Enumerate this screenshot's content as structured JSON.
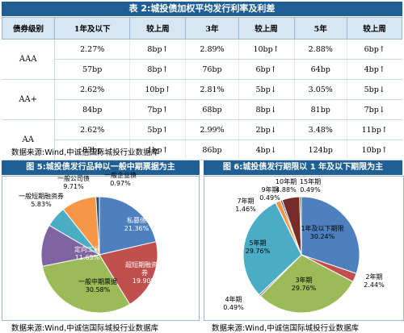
{
  "table": {
    "title": "表 2:城投债加权平均发行利率及利差",
    "headers": [
      "债券级别",
      "1年及以下",
      "较上周",
      "3年",
      "较上周",
      "5年",
      "较上周"
    ],
    "rows": [
      {
        "grade": "AAA",
        "rate": [
          "2.27%",
          "8bp↑",
          "2.89%",
          "10bp↑",
          "2.88%",
          "6bp↑"
        ],
        "spread": [
          "57bp",
          "8bp↑",
          "76bp",
          "6bp↑",
          "64bp",
          "4bp↑"
        ]
      },
      {
        "grade": "AA+",
        "rate": [
          "2.62%",
          "10bp↑",
          "2.81%",
          "5bp↓",
          "3.05%",
          "5bp↓"
        ],
        "spread": [
          "84bp",
          "7bp↑",
          "68bp",
          "8bp↓",
          "81bp",
          "7bp↓"
        ]
      },
      {
        "grade": "AA",
        "rate": [
          "2.62%",
          "5bp↑",
          "2.99%",
          "2bp↓",
          "3.48%",
          "11bp↑"
        ],
        "spread": [
          "83bp",
          "1bp↑",
          "86bp",
          "4bp↓",
          "124bp",
          "10bp↑"
        ]
      }
    ],
    "source": "数据来源:Wind,中诚信国际城投行业数据库"
  },
  "fig5": {
    "title": "图 5:城投债发行品种以一般中期票据为主",
    "source": "数据来源:Wind,中诚信国际城投行业数据库"
  },
  "fig6": {
    "title": "图 6:城投债发行期限以 1 年及以下期限为主",
    "source": "数据来源:Wind,中诚信国际城投行业数据库"
  },
  "chart_data": [
    {
      "type": "pie",
      "slices": [
        {
          "label": "私募债",
          "value": 21.36,
          "text": "21.36%",
          "color": "#4e7fbf"
        },
        {
          "label": "超短期融资债券",
          "value": 19.9,
          "text": "19.90%",
          "color": "#c0504d"
        },
        {
          "label": "一般中期票据",
          "value": 30.58,
          "text": "30.58%",
          "color": "#9bbb59"
        },
        {
          "label": "定向工具",
          "value": 11.65,
          "text": "11.65%",
          "color": "#8064a2"
        },
        {
          "label": "一般短期融资券",
          "value": 5.83,
          "text": "5.83%",
          "color": "#4bacc6"
        },
        {
          "label": "一般公司债",
          "value": 9.71,
          "text": "9.71%",
          "color": "#f79646"
        },
        {
          "label": "一般企业债",
          "value": 0.97,
          "text": "0.97%",
          "color": "#2c4d75"
        }
      ]
    },
    {
      "type": "pie",
      "slices": [
        {
          "label": "1年及以下期限",
          "value": 30.24,
          "text": "30.24%",
          "color": "#4e7fbf"
        },
        {
          "label": "2年期",
          "value": 2.44,
          "text": "2.44%",
          "color": "#c0504d"
        },
        {
          "label": "3年期",
          "value": 29.76,
          "text": "29.76%",
          "color": "#9bbb59"
        },
        {
          "label": "4年期",
          "value": 0.49,
          "text": "0.49%",
          "color": "#8064a2"
        },
        {
          "label": "5年期",
          "value": 29.76,
          "text": "29.76%",
          "color": "#4bacc6"
        },
        {
          "label": "7年期",
          "value": 1.46,
          "text": "1.46%",
          "color": "#f79646"
        },
        {
          "label": "9年期",
          "value": 0.49,
          "text": "0.49%",
          "color": "#2c4d75"
        },
        {
          "label": "10年期",
          "value": 4.88,
          "text": "4.88%",
          "color": "#772c2a"
        },
        {
          "label": "15年期",
          "value": 0.49,
          "text": "0.49%",
          "color": "#5f7530"
        }
      ]
    }
  ]
}
